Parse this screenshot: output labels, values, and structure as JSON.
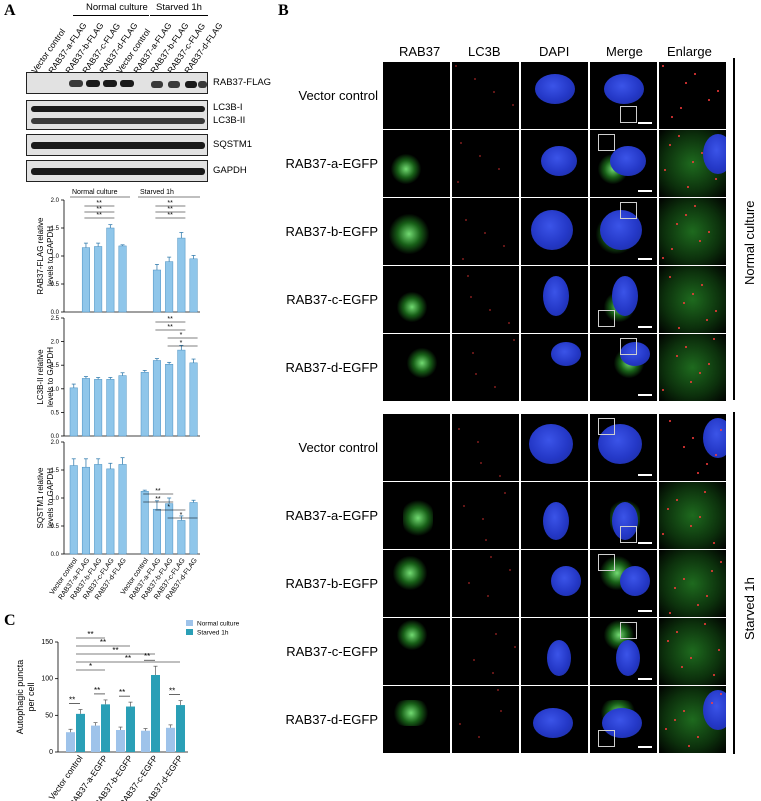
{
  "panels": {
    "a": "A",
    "b": "B",
    "c": "C"
  },
  "panel_a": {
    "group_headers": [
      "Normal culture",
      "Starved 1h"
    ],
    "lanes": [
      "Vector control",
      "RAB37-a-FLAG",
      "RAB37-b-FLAG",
      "RAB37-c-FLAG",
      "RAB37-d-FLAG",
      "Vector control",
      "RAB37-a-FLAG",
      "RAB37-b-FLAG",
      "RAB37-c-FLAG",
      "RAB37-d-FLAG"
    ],
    "blot_labels": [
      "RAB37-FLAG",
      "LC3B-I",
      "LC3B-II",
      "SQSTM1",
      "GAPDH"
    ],
    "stats": {
      "sig2": "**",
      "sig1": "*"
    }
  },
  "panel_b": {
    "columns": [
      "RAB37",
      "LC3B",
      "DAPI",
      "Merge",
      "Enlarge"
    ],
    "rows": [
      "Vector control",
      "RAB37-a-EGFP",
      "RAB37-b-EGFP",
      "RAB37-c-EGFP",
      "RAB37-d-EGFP",
      "Vector control",
      "RAB37-a-EGFP",
      "RAB37-b-EGFP",
      "RAB37-c-EGFP",
      "RAB37-d-EGFP"
    ],
    "side_labels": [
      "Normal culture",
      "Starved 1h"
    ]
  },
  "chart_data": [
    {
      "type": "bar",
      "categories": [
        "Vector control",
        "RAB37-a-FLAG",
        "RAB37-b-FLAG",
        "RAB37-c-FLAG",
        "RAB37-d-FLAG",
        "Vector control",
        "RAB37-a-FLAG",
        "RAB37-b-FLAG",
        "RAB37-c-FLAG",
        "RAB37-d-FLAG"
      ],
      "values": [
        null,
        1.15,
        1.17,
        1.5,
        1.18,
        null,
        0.75,
        0.9,
        1.32,
        0.95
      ],
      "errors": [
        null,
        0.08,
        0.06,
        0.06,
        0.02,
        null,
        0.1,
        0.08,
        0.1,
        0.06
      ],
      "ylabel": "RAB37-FLAG relative levels to GAPDH",
      "ylim": [
        0,
        2.0
      ],
      "yticks": [
        "0.0",
        "0.5",
        "1.0",
        "1.5",
        "2.0"
      ],
      "group_headers": [
        "Normal culture",
        "Starved 1h"
      ]
    },
    {
      "type": "bar",
      "categories": [
        "Vector control",
        "RAB37-a-FLAG",
        "RAB37-b-FLAG",
        "RAB37-c-FLAG",
        "RAB37-d-FLAG",
        "Vector control",
        "RAB37-a-FLAG",
        "RAB37-b-FLAG",
        "RAB37-c-FLAG",
        "RAB37-d-FLAG"
      ],
      "values": [
        1.02,
        1.22,
        1.2,
        1.2,
        1.28,
        1.35,
        1.6,
        1.52,
        1.82,
        1.55
      ],
      "errors": [
        0.08,
        0.04,
        0.04,
        0.04,
        0.06,
        0.04,
        0.04,
        0.04,
        0.1,
        0.08
      ],
      "ylabel": "LC3B-II relative levels to GAPDH",
      "ylim": [
        0,
        2.5
      ],
      "yticks": [
        "0.0",
        "0.5",
        "1.0",
        "1.5",
        "2.0",
        "2.5"
      ]
    },
    {
      "type": "bar",
      "categories": [
        "Vector control",
        "RAB37-a-FLAG",
        "RAB37-b-FLAG",
        "RAB37-c-FLAG",
        "RAB37-d-FLAG",
        "Vector control",
        "RAB37-a-FLAG",
        "RAB37-b-FLAG",
        "RAB37-c-FLAG",
        "RAB37-d-FLAG"
      ],
      "values": [
        1.58,
        1.55,
        1.6,
        1.52,
        1.6,
        1.12,
        0.8,
        0.9,
        0.6,
        0.92
      ],
      "errors": [
        0.12,
        0.15,
        0.1,
        0.1,
        0.12,
        0.02,
        0.15,
        0.1,
        0.08,
        0.04
      ],
      "ylabel": "SQSTM1 relative levels to GAPDH",
      "ylim": [
        0,
        2.0
      ],
      "yticks": [
        "0.0",
        "0.5",
        "1.0",
        "1.5",
        "2.0"
      ]
    },
    {
      "type": "bar",
      "categories": [
        "Vector control",
        "RAB37-a-EGFP",
        "RAB37-b-EGFP",
        "RAB37-c-EGFP",
        "RAB37-d-EGFP"
      ],
      "series": [
        {
          "name": "Normal culture",
          "values": [
            27,
            36,
            30,
            29,
            33
          ],
          "errors": [
            4,
            4,
            4,
            3,
            4
          ],
          "color": "#9ec3ea"
        },
        {
          "name": "Starved 1h",
          "values": [
            52,
            65,
            62,
            105,
            64
          ],
          "errors": [
            6,
            6,
            6,
            12,
            6
          ],
          "color": "#2a9fb6"
        }
      ],
      "ylabel": "Autophagic puncta per cell",
      "ylim": [
        0,
        150
      ],
      "yticks": [
        "0",
        "50",
        "100",
        "150"
      ]
    }
  ]
}
